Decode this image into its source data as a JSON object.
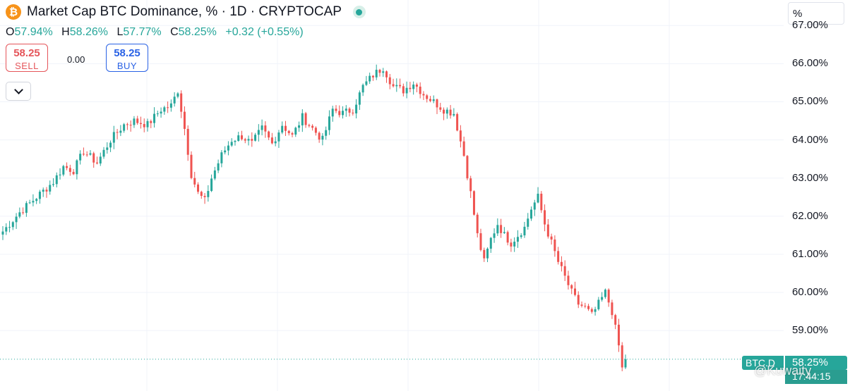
{
  "header": {
    "title": "Market Cap BTC Dominance, % · 1D · CRYPTOCAP",
    "logo_glyph": "₿",
    "ohlc": {
      "o_label": "O",
      "o_value": "57.94%",
      "h_label": "H",
      "h_value": "58.26%",
      "l_label": "L",
      "l_value": "57.77%",
      "c_label": "C",
      "c_value": "58.25%",
      "change": "+0.32 (+0.55%)"
    }
  },
  "trade": {
    "sell_price": "58.25",
    "sell_label": "SELL",
    "spread": "0.00",
    "buy_price": "58.25",
    "buy_label": "BUY"
  },
  "price_scale": {
    "unit": "%",
    "symbol_tag": "BTC.D",
    "last_price_label": "58.25%",
    "timer": "17:44:15"
  },
  "watermark": "@Kuwaity",
  "colors": {
    "up": "#26a69a",
    "down": "#ef5350",
    "grid": "#f0f3fa",
    "bitcoin": "#f7931a"
  },
  "chart_data": {
    "type": "candlestick",
    "ylim": [
      57.6,
      67.3
    ],
    "y_ticks": [
      59,
      60,
      61,
      62,
      63,
      64,
      65,
      66,
      67
    ],
    "y_tick_labels": [
      "59.00%",
      "60.00%",
      "61.00%",
      "62.00%",
      "63.00%",
      "64.00%",
      "65.00%",
      "66.00%",
      "67.00%"
    ],
    "last_price": 58.25,
    "anchors": [
      [
        0,
        61.6
      ],
      [
        5,
        62.1
      ],
      [
        10,
        62.5
      ],
      [
        15,
        62.9
      ],
      [
        18,
        63.3
      ],
      [
        21,
        63.2
      ],
      [
        24,
        63.7
      ],
      [
        28,
        63.4
      ],
      [
        32,
        64.0
      ],
      [
        36,
        64.4
      ],
      [
        39,
        64.5
      ],
      [
        43,
        64.4
      ],
      [
        47,
        64.8
      ],
      [
        50,
        64.9
      ],
      [
        52,
        65.3
      ],
      [
        54,
        64.3
      ],
      [
        56,
        63.1
      ],
      [
        58,
        62.6
      ],
      [
        60,
        62.4
      ],
      [
        62,
        63.0
      ],
      [
        65,
        63.6
      ],
      [
        68,
        64.0
      ],
      [
        71,
        64.1
      ],
      [
        74,
        63.9
      ],
      [
        77,
        64.3
      ],
      [
        80,
        63.9
      ],
      [
        83,
        64.4
      ],
      [
        86,
        64.1
      ],
      [
        89,
        64.6
      ],
      [
        92,
        64.3
      ],
      [
        95,
        64.0
      ],
      [
        98,
        64.8
      ],
      [
        101,
        64.7
      ],
      [
        104,
        64.8
      ],
      [
        107,
        65.4
      ],
      [
        110,
        65.7
      ],
      [
        113,
        65.9
      ],
      [
        116,
        65.4
      ],
      [
        119,
        65.3
      ],
      [
        122,
        65.5
      ],
      [
        125,
        65.2
      ],
      [
        128,
        65.0
      ],
      [
        131,
        64.8
      ],
      [
        134,
        64.7
      ],
      [
        137,
        63.6
      ],
      [
        139,
        62.6
      ],
      [
        141,
        61.5
      ],
      [
        143,
        60.8
      ],
      [
        145,
        61.4
      ],
      [
        147,
        61.8
      ],
      [
        149,
        61.5
      ],
      [
        151,
        61.3
      ],
      [
        153,
        61.5
      ],
      [
        155,
        61.7
      ],
      [
        157,
        62.2
      ],
      [
        159,
        62.5
      ],
      [
        161,
        61.8
      ],
      [
        163,
        61.3
      ],
      [
        165,
        60.8
      ],
      [
        167,
        60.4
      ],
      [
        169,
        60.0
      ],
      [
        171,
        59.7
      ],
      [
        173,
        59.6
      ],
      [
        175,
        59.4
      ],
      [
        177,
        59.7
      ],
      [
        179,
        60.0
      ],
      [
        181,
        59.5
      ],
      [
        183,
        58.6
      ],
      [
        184,
        58.0
      ],
      [
        185,
        58.25
      ]
    ]
  }
}
